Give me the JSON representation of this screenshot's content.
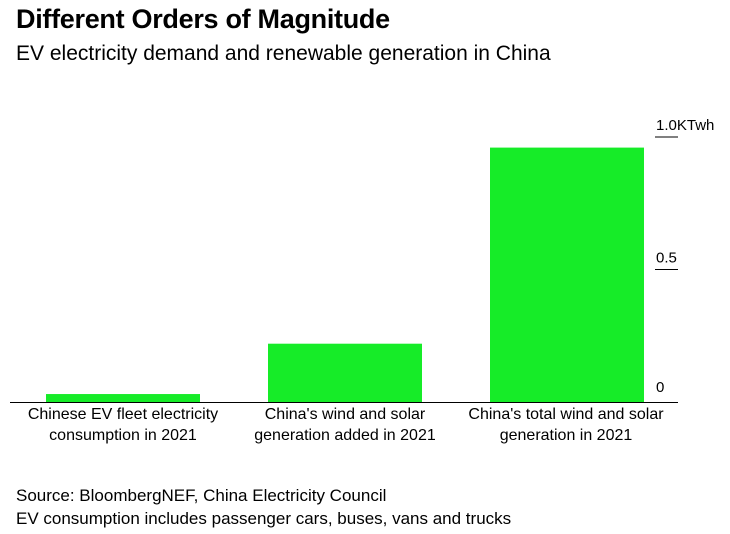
{
  "header": {
    "title": "Different Orders of Magnitude",
    "subtitle": "EV electricity demand and renewable generation in China"
  },
  "chart_data": {
    "type": "bar",
    "title": "Different Orders of Magnitude",
    "subtitle": "EV electricity demand and renewable generation in China",
    "categories": [
      [
        "Chinese EV fleet electricity",
        "consumption in 2021"
      ],
      [
        "China's wind and solar",
        "generation added in 2021"
      ],
      [
        "China's total wind and solar",
        "generation in 2021"
      ]
    ],
    "values": [
      0.03,
      0.22,
      0.96
    ],
    "ylim": [
      0,
      1.0
    ],
    "yticks": [
      {
        "value": 0,
        "label": "0"
      },
      {
        "value": 0.5,
        "label": "0.5"
      },
      {
        "value": 1.0,
        "label": "1.0KTwh"
      }
    ],
    "bar_color": "#16ec28",
    "grid": false,
    "y_axis_side": "right"
  },
  "footer": {
    "source": "Source: BloombergNEF, China Electricity Council",
    "note": "EV consumption includes passenger cars, buses, vans and trucks"
  }
}
